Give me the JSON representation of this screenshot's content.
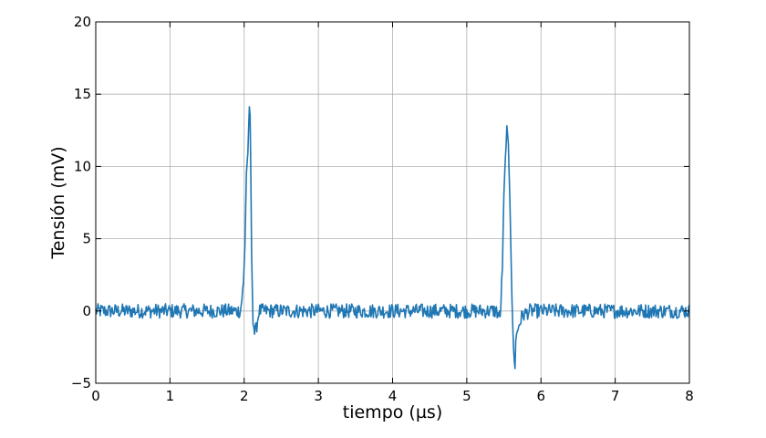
{
  "chart_data": {
    "type": "line",
    "title": "",
    "xlabel": "tiempo (µs)",
    "ylabel": "Tensión (mV)",
    "xlim": [
      0,
      8
    ],
    "ylim": [
      -5,
      20
    ],
    "x_ticks": [
      0,
      1,
      2,
      3,
      4,
      5,
      6,
      7,
      8
    ],
    "y_ticks": [
      -5,
      0,
      5,
      10,
      15,
      20
    ],
    "x_tick_labels": [
      "0",
      "1",
      "2",
      "3",
      "4",
      "5",
      "6",
      "7",
      "8"
    ],
    "y_tick_labels": [
      "−5",
      "0",
      "5",
      "10",
      "15",
      "20"
    ],
    "grid": true,
    "line_color": "#1f77b4",
    "series": [
      {
        "name": "",
        "noise_amplitude": 0.5,
        "x": [
          0,
          0.5,
          1.0,
          1.5,
          1.95,
          1.99,
          2.01,
          2.03,
          2.05,
          2.07,
          2.08,
          2.09,
          2.1,
          2.12,
          2.14,
          2.16,
          2.2,
          2.5,
          3.0,
          3.5,
          4.0,
          4.5,
          5.0,
          5.4,
          5.45,
          5.48,
          5.5,
          5.52,
          5.54,
          5.56,
          5.58,
          5.6,
          5.62,
          5.64,
          5.65,
          5.66,
          5.7,
          5.75,
          5.85,
          6.0,
          6.5,
          7.0,
          7.5,
          8.0
        ],
        "y": [
          0,
          0,
          0,
          0,
          0,
          1.8,
          4.5,
          9.5,
          11.0,
          14.0,
          13.5,
          9.5,
          4.0,
          -0.5,
          -1.5,
          -1.3,
          0,
          0,
          0,
          0,
          0,
          0,
          0,
          0,
          -0.5,
          3.0,
          8.0,
          10.5,
          12.7,
          11.5,
          8.0,
          3.0,
          -1.5,
          -3.5,
          -3.9,
          -2.0,
          -1.0,
          -0.3,
          0,
          0,
          0,
          0,
          0,
          0
        ]
      }
    ]
  }
}
